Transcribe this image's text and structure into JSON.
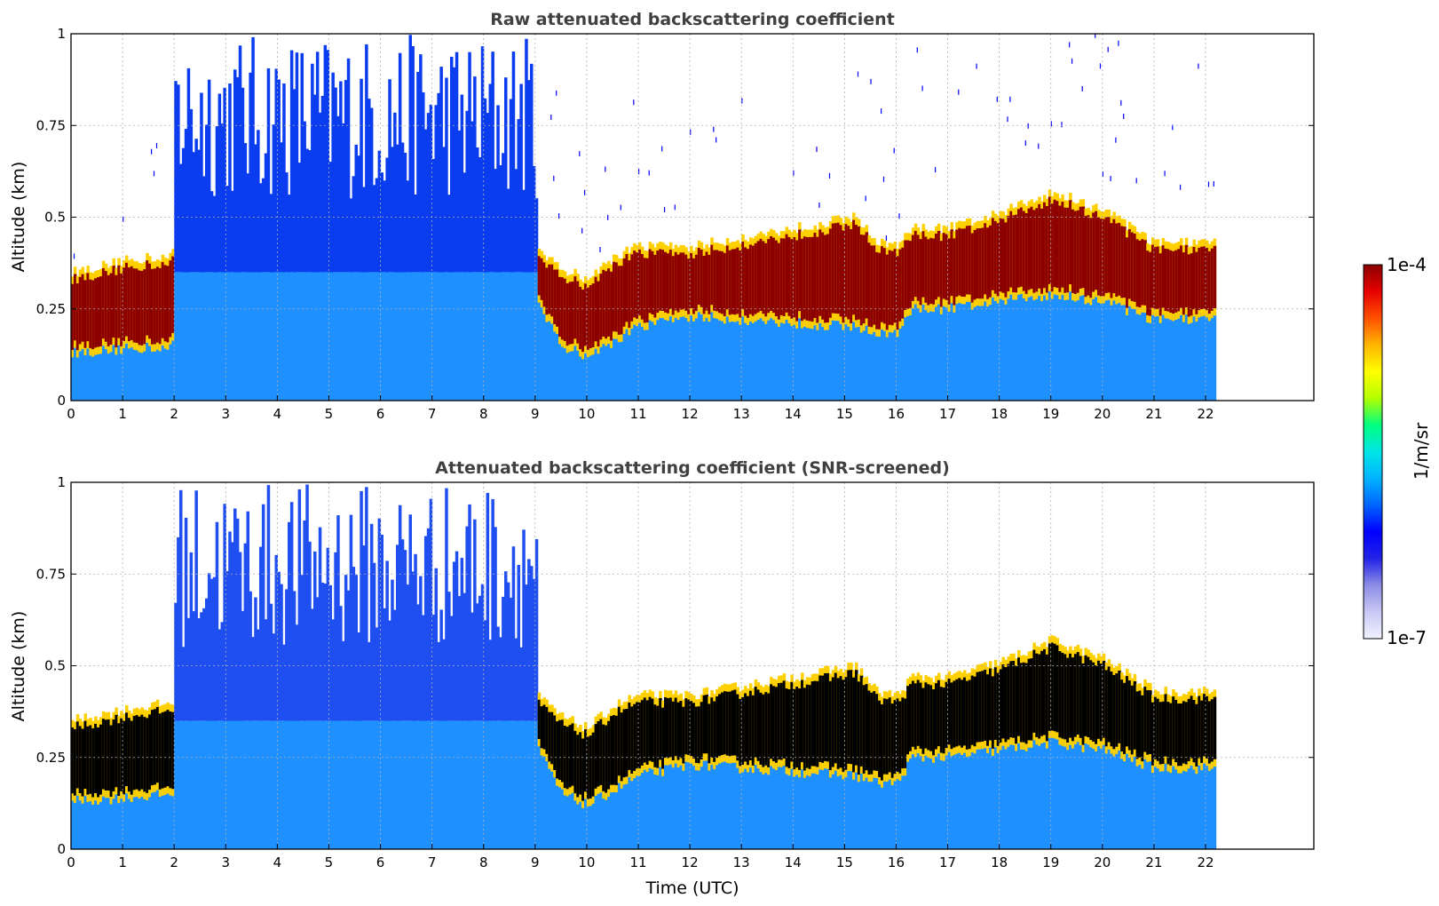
{
  "chart_data": [
    {
      "type": "heatmap",
      "title": "Raw attenuated backscattering coefficient",
      "xlabel": "",
      "ylabel": "Altitude (km)",
      "xlim": [
        0,
        24.1
      ],
      "ylim": [
        0,
        1
      ],
      "xticks": [
        0,
        1,
        2,
        3,
        4,
        5,
        6,
        7,
        8,
        9,
        10,
        11,
        12,
        13,
        14,
        15,
        16,
        17,
        18,
        19,
        20,
        21,
        22
      ],
      "yticks": [
        0,
        0.25,
        0.5,
        0.75,
        1
      ],
      "ytick_labels": [
        "0",
        "0.25",
        "0.5",
        "0.75",
        "1"
      ],
      "grid": true,
      "data_end_hour": 22.2,
      "screened": false,
      "cloud_layer": {
        "hours": [
          0,
          1,
          2,
          2.6,
          9.0,
          9.5,
          10.0,
          10.5,
          11.0,
          12.0,
          15.2,
          15.6,
          16.0,
          16.3,
          17.0,
          18.0,
          19.0,
          20.0,
          21.0,
          22.2
        ],
        "bottom_km": [
          0.15,
          0.16,
          0.17,
          null,
          0.3,
          0.17,
          0.14,
          0.18,
          0.22,
          0.25,
          0.22,
          0.2,
          0.2,
          0.27,
          0.27,
          0.29,
          0.31,
          0.29,
          0.24,
          0.24
        ],
        "top_km": [
          0.33,
          0.36,
          0.38,
          null,
          0.4,
          0.34,
          0.31,
          0.37,
          0.4,
          0.4,
          0.48,
          0.41,
          0.4,
          0.45,
          0.45,
          0.49,
          0.55,
          0.5,
          0.41,
          0.41
        ]
      }
    },
    {
      "type": "heatmap",
      "title": "Attenuated backscattering coefficient (SNR-screened)",
      "xlabel": "Time (UTC)",
      "ylabel": "Altitude (km)",
      "xlim": [
        0,
        24.1
      ],
      "ylim": [
        0,
        1
      ],
      "xticks": [
        0,
        1,
        2,
        3,
        4,
        5,
        6,
        7,
        8,
        9,
        10,
        11,
        12,
        13,
        14,
        15,
        16,
        17,
        18,
        19,
        20,
        21,
        22
      ],
      "yticks": [
        0,
        0.25,
        0.5,
        0.75,
        1
      ],
      "ytick_labels": [
        "0",
        "0.25",
        "0.5",
        "0.75",
        "1"
      ],
      "grid": true,
      "data_end_hour": 22.2,
      "screened": true
    }
  ],
  "colorbar": {
    "label": "1/m/sr",
    "max_label": "1e-4",
    "min_label": "1e-7",
    "colors": [
      "#f2f2ff",
      "#c8c8f5",
      "#8c8ce6",
      "#2323e6",
      "#0000ff",
      "#0064ff",
      "#00b4ff",
      "#00e6e6",
      "#00ff80",
      "#b4ff00",
      "#ffff00",
      "#ffb400",
      "#ff5000",
      "#e60000",
      "#8c0000"
    ]
  }
}
